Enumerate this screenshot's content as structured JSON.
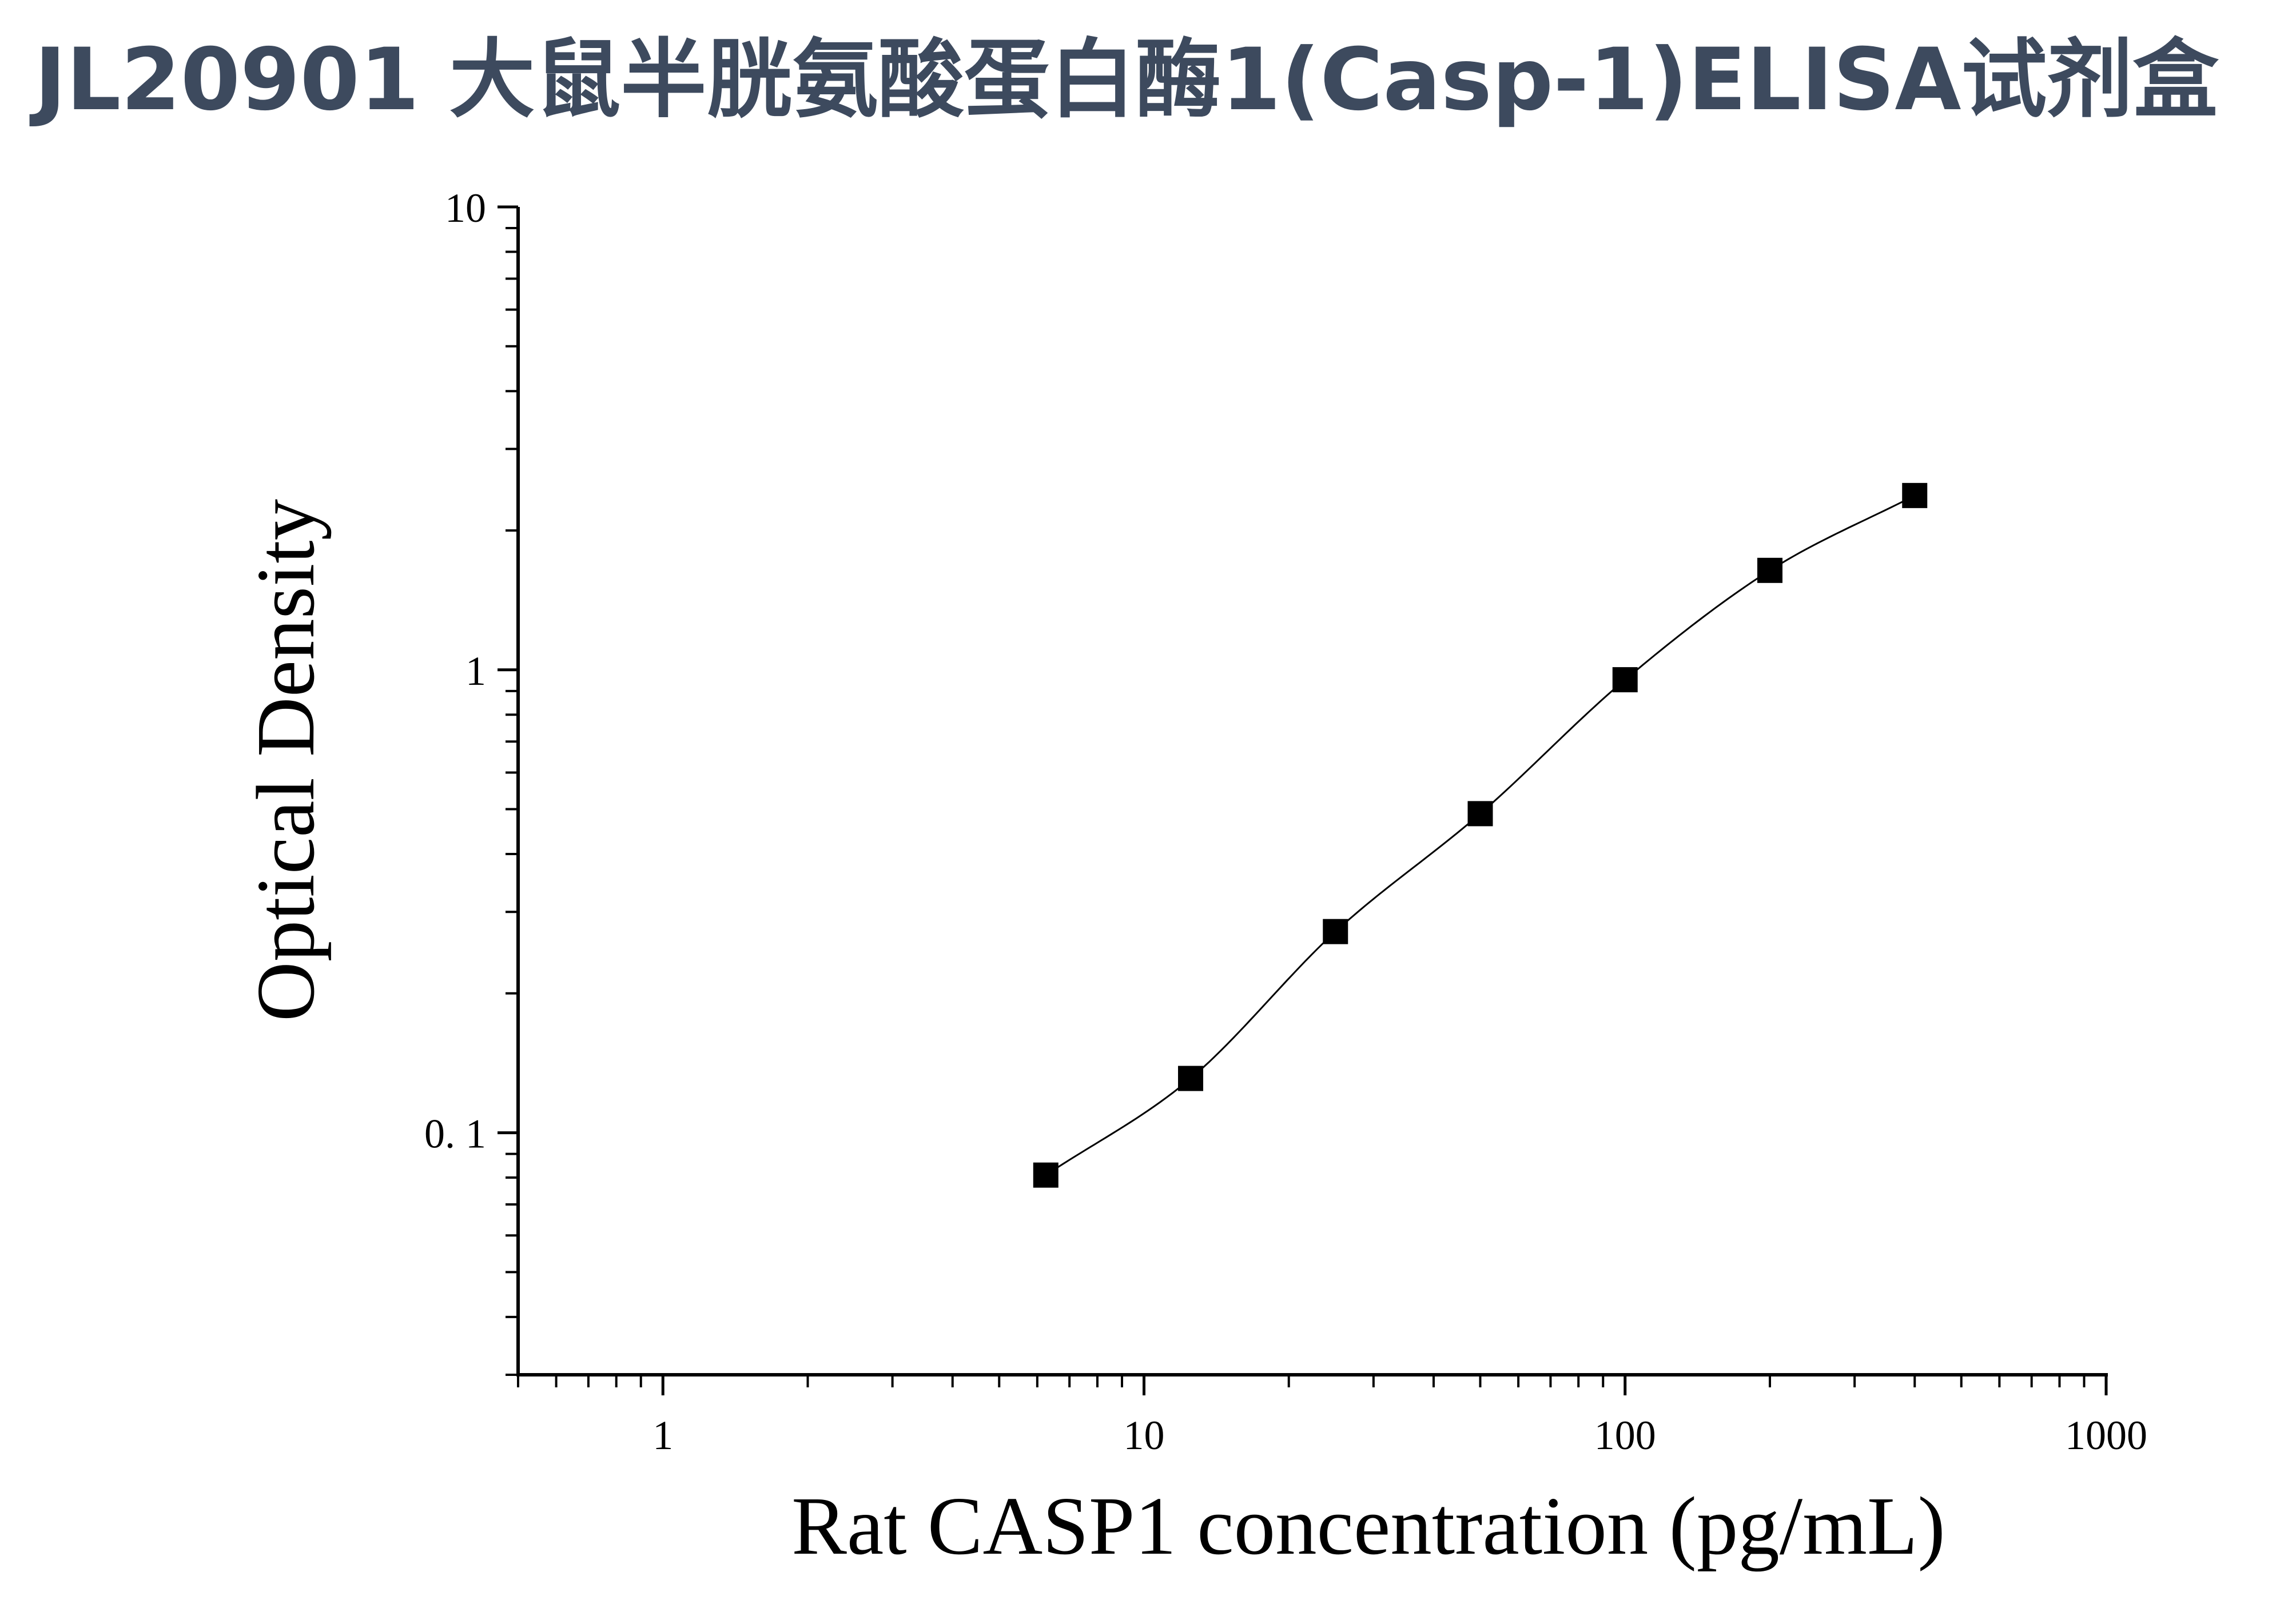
{
  "title": "JL20901 大鼠半胱氨酸蛋白酶1(Casp-1)ELISA试剂盒",
  "chart_data": {
    "type": "scatter",
    "xlabel": "Rat CASP1 concentration (pg/mL)",
    "ylabel": "Optical Density",
    "xscale": "log",
    "yscale": "log",
    "xlim": [
      0.5,
      1000
    ],
    "ylim": [
      0.03,
      10
    ],
    "xticks": [
      1,
      10,
      100,
      1000
    ],
    "xtick_labels": [
      "1",
      "10",
      "100",
      "1000"
    ],
    "yticks": [
      0.1,
      1,
      10
    ],
    "ytick_labels": [
      "0. 1",
      "1",
      "10"
    ],
    "grid": false,
    "marker": "square",
    "fit_curve": "four-parameter logistic",
    "series": [
      {
        "x": [
          6.25,
          12.5,
          25,
          50,
          100,
          200,
          400
        ],
        "y": [
          0.081,
          0.131,
          0.272,
          0.489,
          0.952,
          1.64,
          2.38
        ]
      }
    ]
  },
  "colors": {
    "title": "#3d4a5e",
    "axis": "#000000",
    "marker": "#000000"
  }
}
